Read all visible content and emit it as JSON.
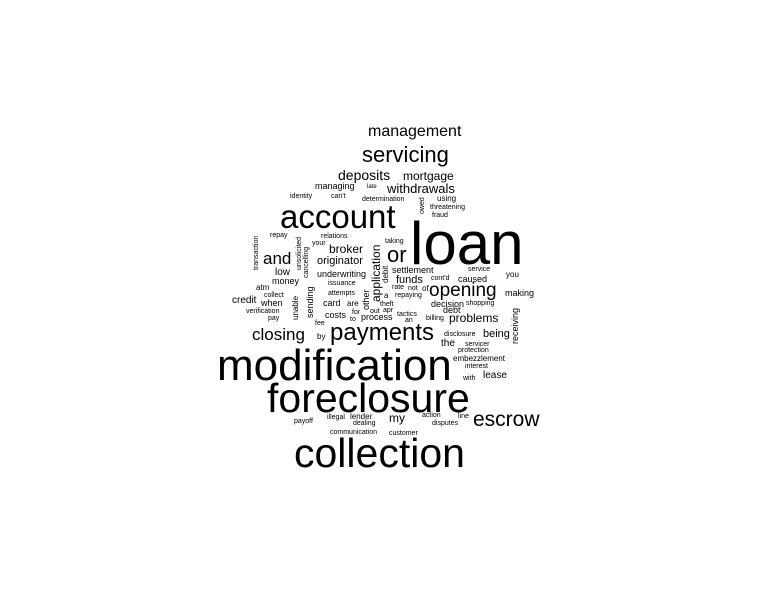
{
  "cloud": {
    "words": [
      {
        "id": "loan",
        "text": "loan"
      },
      {
        "id": "modification",
        "text": "modification"
      },
      {
        "id": "foreclosure",
        "text": "foreclosure"
      },
      {
        "id": "collection",
        "text": "collection"
      },
      {
        "id": "account",
        "text": "account"
      },
      {
        "id": "payments",
        "text": "payments"
      },
      {
        "id": "servicing",
        "text": "servicing"
      },
      {
        "id": "management",
        "text": "management"
      },
      {
        "id": "escrow",
        "text": "escrow"
      },
      {
        "id": "opening",
        "text": "opening"
      },
      {
        "id": "closing",
        "text": "closing"
      },
      {
        "id": "or",
        "text": "or"
      },
      {
        "id": "and",
        "text": "and"
      },
      {
        "id": "deposits",
        "text": "deposits"
      },
      {
        "id": "mortgage",
        "text": "mortgage"
      },
      {
        "id": "withdrawals",
        "text": "withdrawals"
      },
      {
        "id": "broker",
        "text": "broker"
      },
      {
        "id": "originator",
        "text": "originator"
      },
      {
        "id": "problems",
        "text": "problems"
      },
      {
        "id": "my",
        "text": "my"
      },
      {
        "id": "application",
        "text": "application"
      },
      {
        "id": "funds",
        "text": "funds"
      },
      {
        "id": "lease",
        "text": "lease"
      },
      {
        "id": "being",
        "text": "being"
      },
      {
        "id": "credit",
        "text": "credit"
      },
      {
        "id": "low",
        "text": "low"
      },
      {
        "id": "card",
        "text": "card"
      },
      {
        "id": "costs",
        "text": "costs"
      },
      {
        "id": "process",
        "text": "process"
      },
      {
        "id": "making",
        "text": "making"
      },
      {
        "id": "the",
        "text": "the"
      },
      {
        "id": "settlement",
        "text": "settlement"
      },
      {
        "id": "managing",
        "text": "managing"
      },
      {
        "id": "underwriting",
        "text": "underwriting"
      },
      {
        "id": "debt",
        "text": "debt"
      },
      {
        "id": "caused",
        "text": "caused"
      },
      {
        "id": "decision",
        "text": "decision"
      },
      {
        "id": "money",
        "text": "money"
      },
      {
        "id": "atm",
        "text": "atm"
      },
      {
        "id": "when",
        "text": "when"
      },
      {
        "id": "are",
        "text": "are"
      },
      {
        "id": "a",
        "text": "a"
      },
      {
        "id": "sending",
        "text": "sending"
      },
      {
        "id": "other",
        "text": "other"
      },
      {
        "id": "receiving",
        "text": "receiving"
      },
      {
        "id": "unable",
        "text": "unable"
      },
      {
        "id": "can't",
        "text": "can't"
      },
      {
        "id": "identity",
        "text": "identity"
      },
      {
        "id": "late",
        "text": "late"
      },
      {
        "id": "determination",
        "text": "determination"
      },
      {
        "id": "using",
        "text": "using"
      },
      {
        "id": "threatening",
        "text": "threatening"
      },
      {
        "id": "fraud",
        "text": "fraud"
      },
      {
        "id": "owed",
        "text": "owed"
      },
      {
        "id": "repay",
        "text": "repay"
      },
      {
        "id": "relations",
        "text": "relations"
      },
      {
        "id": "your",
        "text": "your"
      },
      {
        "id": "taking",
        "text": "taking"
      },
      {
        "id": "transaction",
        "text": "transaction"
      },
      {
        "id": "unsolicited",
        "text": "unsolicited"
      },
      {
        "id": "cancelling",
        "text": "cancelling"
      },
      {
        "id": "debit",
        "text": "debit"
      },
      {
        "id": "service",
        "text": "service"
      },
      {
        "id": "you",
        "text": "you"
      },
      {
        "id": "cont'd",
        "text": "cont'd"
      },
      {
        "id": "issuance",
        "text": "issuance"
      },
      {
        "id": "rate",
        "text": "rate"
      },
      {
        "id": "not",
        "text": "not"
      },
      {
        "id": "of",
        "text": "of"
      },
      {
        "id": "attempts",
        "text": "attempts"
      },
      {
        "id": "repaying",
        "text": "repaying"
      },
      {
        "id": "collect",
        "text": "collect"
      },
      {
        "id": "theft",
        "text": "theft"
      },
      {
        "id": "shopping",
        "text": "shopping"
      },
      {
        "id": "verification",
        "text": "verification"
      },
      {
        "id": "for",
        "text": "for"
      },
      {
        "id": "out",
        "text": "out"
      },
      {
        "id": "apr",
        "text": "apr"
      },
      {
        "id": "pay",
        "text": "pay"
      },
      {
        "id": "tactics",
        "text": "tactics"
      },
      {
        "id": "billing",
        "text": "billing"
      },
      {
        "id": "fee",
        "text": "fee"
      },
      {
        "id": "to",
        "text": "to"
      },
      {
        "id": "an",
        "text": "an"
      },
      {
        "id": "disclosure",
        "text": "disclosure"
      },
      {
        "id": "by",
        "text": "by"
      },
      {
        "id": "servicer",
        "text": "servicer"
      },
      {
        "id": "protection",
        "text": "protection"
      },
      {
        "id": "embezzlement",
        "text": "embezzlement"
      },
      {
        "id": "interest",
        "text": "interest"
      },
      {
        "id": "with",
        "text": "with"
      },
      {
        "id": "action",
        "text": "action"
      },
      {
        "id": "illegal",
        "text": "illegal"
      },
      {
        "id": "lender",
        "text": "lender"
      },
      {
        "id": "payoff",
        "text": "payoff"
      },
      {
        "id": "line",
        "text": "line"
      },
      {
        "id": "dealing",
        "text": "dealing"
      },
      {
        "id": "disputes",
        "text": "disputes"
      },
      {
        "id": "communication",
        "text": "communication"
      },
      {
        "id": "customer",
        "text": "customer"
      }
    ]
  }
}
